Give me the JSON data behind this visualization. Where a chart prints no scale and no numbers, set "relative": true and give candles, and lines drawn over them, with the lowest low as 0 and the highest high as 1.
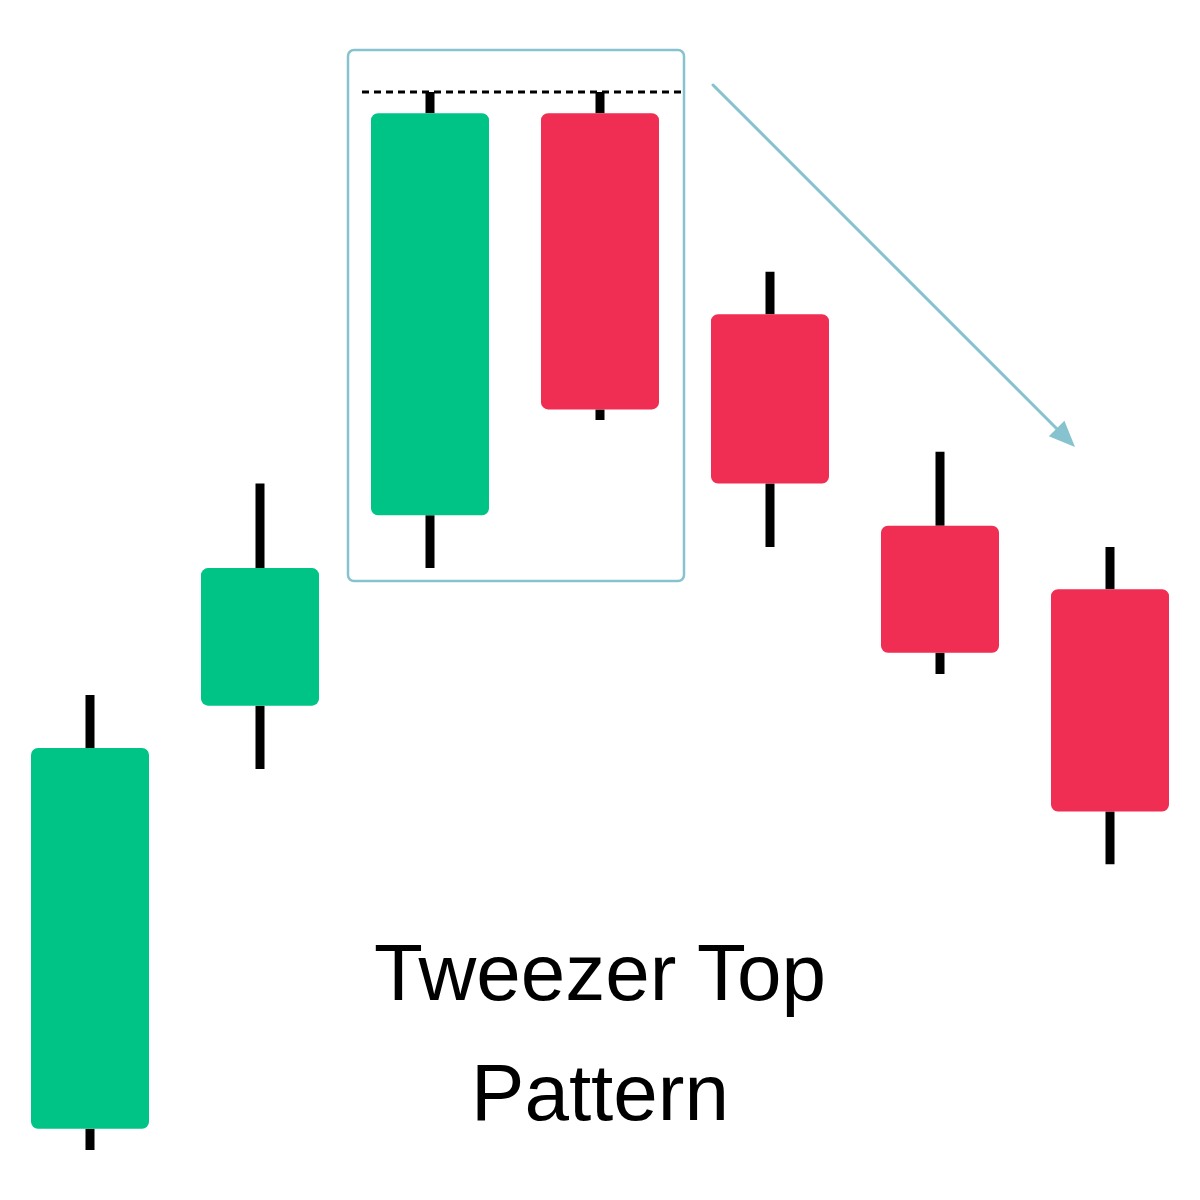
{
  "chart_data": {
    "type": "candlestick",
    "title": "Tweezer Top Pattern",
    "relative": true,
    "categories": [
      null,
      null,
      null,
      null,
      null,
      null,
      null
    ],
    "ohlc": [
      [
        0.02,
        0.43,
        0,
        0.38
      ],
      [
        0.42,
        0.63,
        0.36,
        0.55
      ],
      [
        0.6,
        1,
        0.55,
        0.98
      ],
      [
        0.98,
        1,
        0.69,
        0.7
      ],
      [
        0.79,
        0.83,
        0.57,
        0.63
      ],
      [
        0.59,
        0.66,
        0.45,
        0.47
      ],
      [
        0.53,
        0.57,
        0.27,
        0.32
      ]
    ],
    "colors": [
      "#00c386",
      "#00c386",
      "#00c386",
      "#f02d52",
      "#f02d52",
      "#f02d52",
      "#f02d52"
    ],
    "ref_lines": [
      {
        "axis": "y",
        "value": 1,
        "color": "#000000",
        "line_style": "dashed"
      }
    ]
  }
}
